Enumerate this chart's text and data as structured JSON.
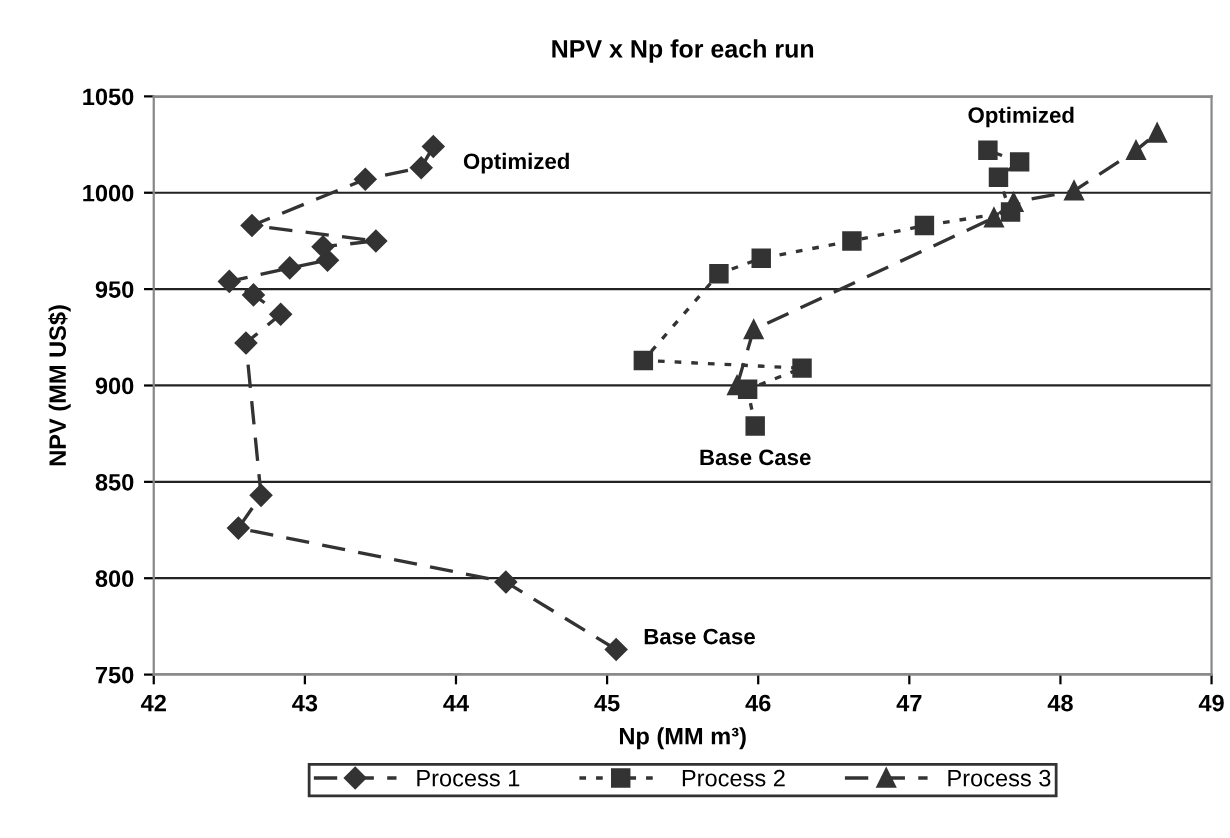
{
  "chart_data": {
    "type": "line",
    "title": "NPV x Np for each run",
    "xlabel": "Np (MM m³)",
    "ylabel": "NPV (MM US$)",
    "xlim": [
      42,
      49
    ],
    "xticks": [
      42,
      43,
      44,
      45,
      46,
      47,
      48,
      49
    ],
    "ylim": [
      750,
      1050
    ],
    "yticks": [
      750,
      800,
      850,
      900,
      950,
      1000,
      1050
    ],
    "grid": "y",
    "legend": "bottom",
    "series": [
      {
        "name": "Process 1",
        "color": "#333333",
        "marker": "diamond",
        "line_style": "dashed",
        "x": [
          45.06,
          44.33,
          42.56,
          42.71,
          42.61,
          42.84,
          42.66,
          42.5,
          42.9,
          43.15,
          43.12,
          43.47,
          42.65,
          43.4,
          43.77,
          43.85
        ],
        "values": [
          763,
          798,
          826,
          843,
          922,
          937,
          947,
          954,
          961,
          965,
          972,
          975,
          983,
          1007,
          1013,
          1024
        ]
      },
      {
        "name": "Process 2",
        "color": "#333333",
        "marker": "square",
        "line_style": "dotted",
        "x": [
          45.98,
          45.93,
          46.29,
          45.24,
          45.74,
          46.02,
          46.62,
          47.1,
          47.67,
          47.59,
          47.73,
          47.52
        ],
        "values": [
          879,
          898,
          909,
          913,
          958,
          966,
          975,
          983,
          990,
          1008,
          1016,
          1022
        ]
      },
      {
        "name": "Process 3",
        "color": "#333333",
        "marker": "triangle",
        "line_style": "dashed",
        "x": [
          45.86,
          45.97,
          47.56,
          47.69,
          48.09,
          48.5,
          48.64
        ],
        "values": [
          900,
          929,
          987,
          995,
          1001,
          1022,
          1031
        ]
      }
    ],
    "annotations": [
      {
        "text": "Optimized",
        "x": 43.85,
        "y": 1024
      },
      {
        "text": "Base Case",
        "x": 45.06,
        "y": 763
      },
      {
        "text": "Base Case",
        "x": 45.98,
        "y": 879
      },
      {
        "text": "Optimized",
        "x": 47.52,
        "y": 1022
      }
    ]
  }
}
